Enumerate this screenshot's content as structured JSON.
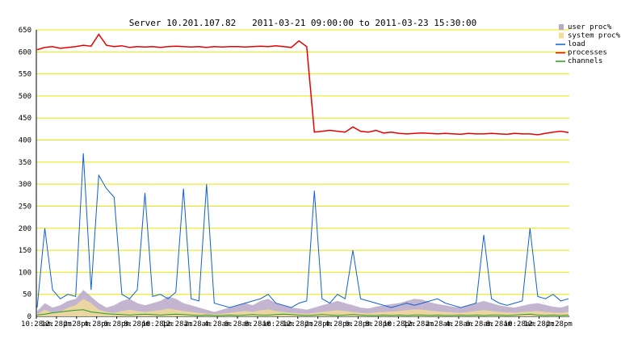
{
  "chart_data": {
    "type": "line",
    "title": "Server 10.201.107.82   2011-03-21 09:00:00 to 2011-03-23 15:30:00",
    "xlabel": "",
    "ylabel": "",
    "ylim": [
      0,
      650
    ],
    "yticks": [
      0,
      50,
      100,
      150,
      200,
      250,
      300,
      350,
      400,
      450,
      500,
      550,
      600,
      650
    ],
    "xticks": [
      "10:28am",
      "12:28pm",
      "2:28pm",
      "4:28pm",
      "6:28pm",
      "8:28pm",
      "10:28pm",
      "12:28am",
      "2:28am",
      "4:28am",
      "6:28am",
      "8:28am",
      "10:28am",
      "12:28pm",
      "2:28pm",
      "4:28pm",
      "6:28pm",
      "8:28pm",
      "10:28pm",
      "12:28am",
      "2:28am",
      "4:28am",
      "6:28am",
      "8:28am",
      "10:28am",
      "12:28pm",
      "2:28pm"
    ],
    "grid": "horizontal",
    "legend_position": "top-right",
    "series": [
      {
        "name": "user proc%",
        "color": "#b8a8c8",
        "style": "area",
        "values": [
          12,
          30,
          20,
          25,
          35,
          40,
          60,
          45,
          30,
          20,
          25,
          35,
          40,
          30,
          25,
          30,
          35,
          45,
          40,
          30,
          25,
          20,
          15,
          10,
          15,
          20,
          25,
          30,
          25,
          35,
          40,
          30,
          25,
          20,
          18,
          15,
          20,
          25,
          30,
          35,
          30,
          25,
          20,
          18,
          22,
          25,
          28,
          30,
          35,
          40,
          38,
          32,
          28,
          25,
          22,
          20,
          25,
          30,
          35,
          30,
          25,
          22,
          20,
          24,
          28,
          30,
          26,
          22,
          20,
          25
        ]
      },
      {
        "name": "system proc%",
        "color": "#f2dc9a",
        "style": "area",
        "values": [
          5,
          15,
          8,
          10,
          20,
          25,
          40,
          30,
          15,
          10,
          8,
          12,
          15,
          12,
          10,
          12,
          14,
          18,
          15,
          12,
          10,
          8,
          6,
          5,
          6,
          8,
          10,
          12,
          10,
          14,
          16,
          12,
          10,
          8,
          7,
          6,
          8,
          10,
          12,
          14,
          12,
          10,
          8,
          7,
          9,
          10,
          11,
          12,
          14,
          16,
          15,
          13,
          11,
          10,
          9,
          8,
          10,
          12,
          14,
          12,
          10,
          9,
          8,
          10,
          11,
          12,
          10,
          9,
          8,
          10
        ]
      },
      {
        "name": "load",
        "color": "#1060d0",
        "style": "line",
        "values": [
          20,
          200,
          60,
          40,
          50,
          45,
          370,
          60,
          320,
          290,
          270,
          50,
          40,
          60,
          280,
          45,
          50,
          40,
          55,
          290,
          40,
          35,
          300,
          30,
          25,
          20,
          25,
          30,
          35,
          40,
          50,
          30,
          25,
          20,
          30,
          35,
          285,
          40,
          30,
          50,
          40,
          150,
          40,
          35,
          30,
          25,
          20,
          25,
          30,
          25,
          30,
          35,
          40,
          30,
          25,
          20,
          25,
          30,
          185,
          40,
          30,
          25,
          30,
          35,
          200,
          45,
          40,
          50,
          35,
          40
        ]
      },
      {
        "name": "processes",
        "color": "#e80000",
        "style": "line",
        "values": [
          605,
          610,
          612,
          608,
          610,
          612,
          615,
          613,
          640,
          615,
          612,
          614,
          610,
          612,
          611,
          612,
          610,
          612,
          613,
          612,
          611,
          612,
          610,
          612,
          611,
          612,
          612,
          611,
          612,
          613,
          612,
          614,
          612,
          610,
          625,
          612,
          418,
          420,
          422,
          420,
          418,
          430,
          420,
          418,
          422,
          416,
          418,
          415,
          414,
          415,
          416,
          415,
          414,
          415,
          414,
          413,
          415,
          414,
          414,
          415,
          414,
          413,
          415,
          414,
          414,
          412,
          415,
          418,
          420,
          417
        ]
      },
      {
        "name": "channels",
        "color": "#20a020",
        "style": "line",
        "values": [
          3,
          5,
          8,
          10,
          12,
          14,
          15,
          10,
          8,
          6,
          5,
          4,
          3,
          4,
          5,
          4,
          3,
          4,
          5,
          4,
          3,
          2,
          3,
          2,
          2,
          3,
          2,
          3,
          4,
          3,
          3,
          4,
          5,
          4,
          3,
          2,
          3,
          4,
          3,
          2,
          3,
          4,
          3,
          2,
          2,
          3,
          2,
          3,
          2,
          3,
          3,
          2,
          3,
          2,
          2,
          3,
          2,
          3,
          2,
          3,
          3,
          2,
          3,
          4,
          5,
          3,
          2,
          3,
          2,
          3
        ]
      }
    ]
  }
}
